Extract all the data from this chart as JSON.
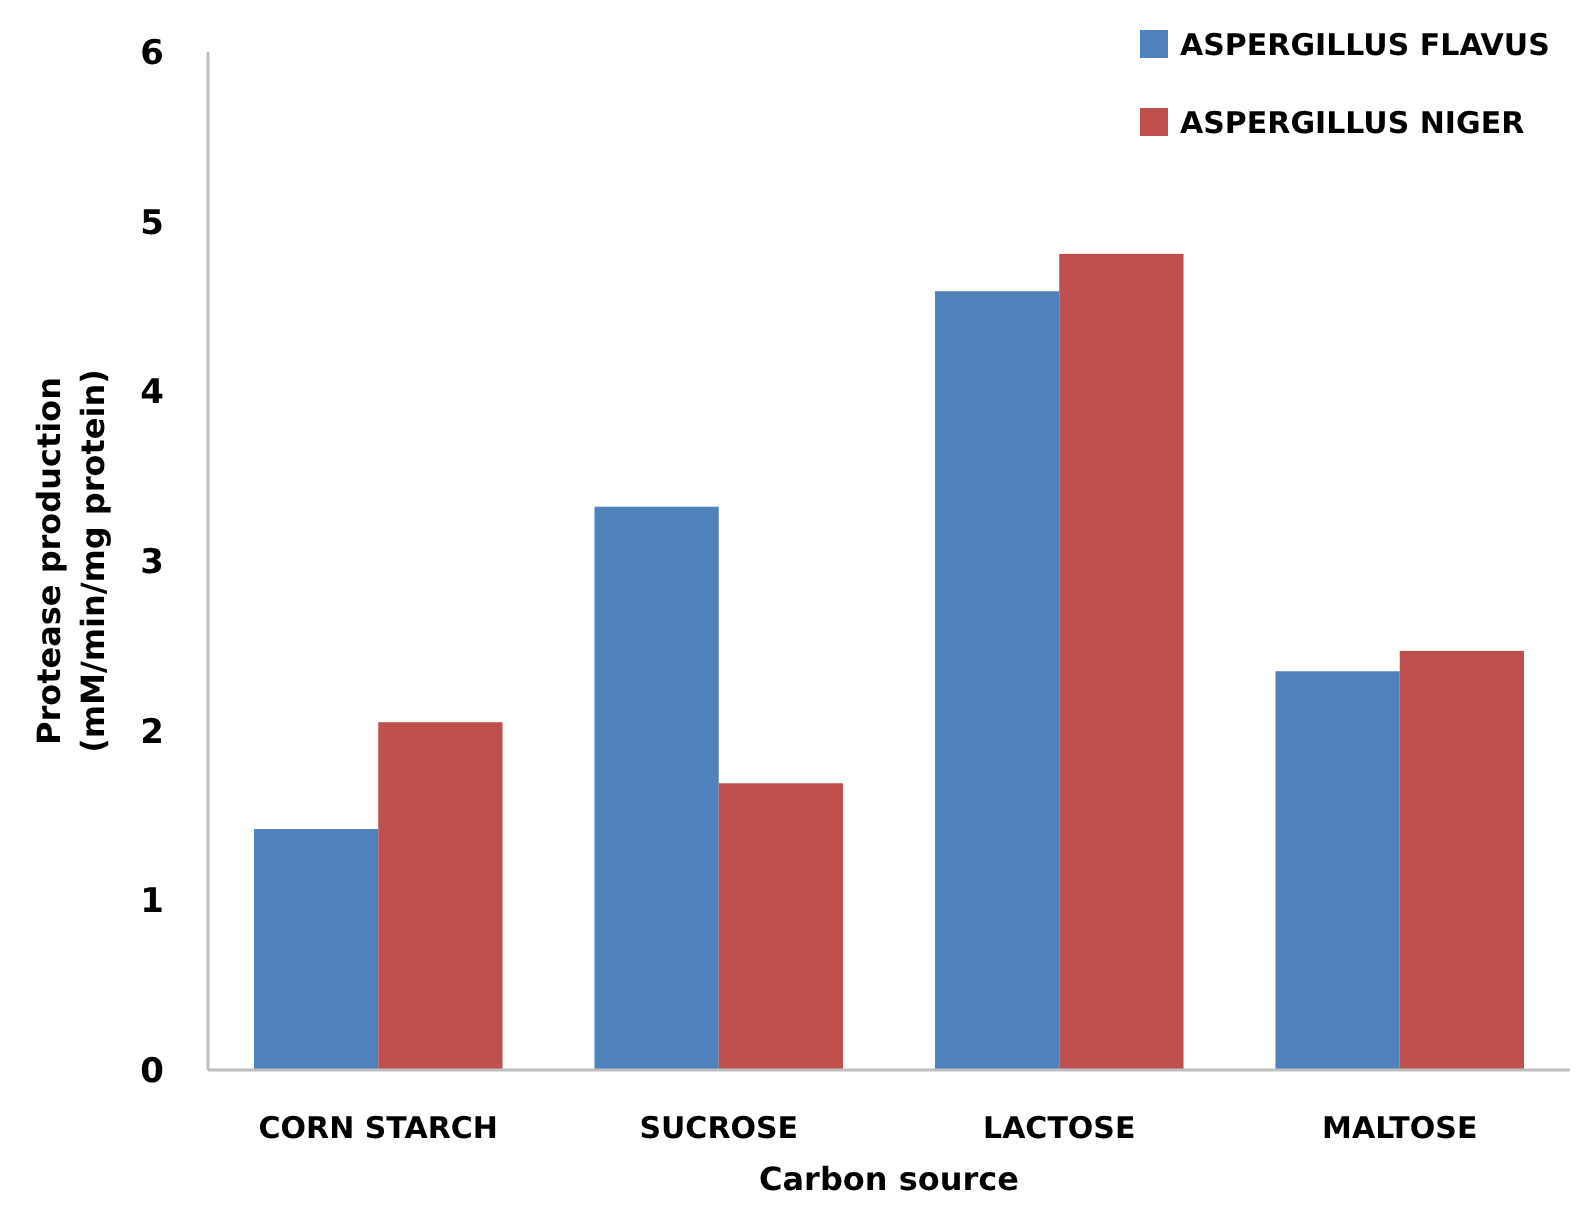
{
  "chart_data": {
    "type": "bar",
    "xlabel": "Carbon source",
    "ylabel": "Protease production\n(mM/min/mg protein)",
    "categories": [
      "CORN STARCH",
      "SUCROSE",
      "LACTOSE",
      "MALTOSE"
    ],
    "series": [
      {
        "name": "ASPERGILLUS FLAVUS",
        "color": "#4f81bd",
        "values": [
          1.42,
          3.32,
          4.59,
          2.35
        ]
      },
      {
        "name": "ASPERGILLUS NIGER",
        "color": "#c0504d",
        "values": [
          2.05,
          1.69,
          4.81,
          2.47
        ]
      }
    ],
    "ylim": [
      0,
      6
    ],
    "yticks": [
      0,
      1,
      2,
      3,
      4,
      5,
      6
    ],
    "grid": false,
    "legend": "top right"
  }
}
